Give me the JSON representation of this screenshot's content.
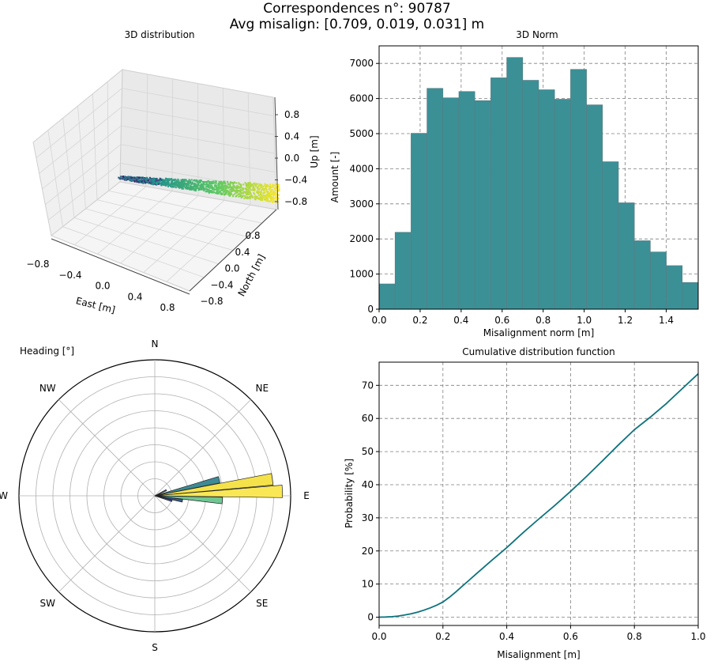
{
  "suptitle": {
    "line1": "Correspondences n°: 90787",
    "line2": "Avg misalign: [0.709, 0.019, 0.031] m"
  },
  "colors": {
    "hist": "#3b9096",
    "hist_edge": "#5a7a80",
    "cdf_line": "#0d737d",
    "grid": "#7f7f7f",
    "pane": "#f0f0f0"
  },
  "chart_data": [
    {
      "type": "scatter",
      "title": "3D distribution",
      "xlabel": "East [m]",
      "ylabel": "North [m]",
      "zlabel": "Up [m]",
      "x_ticks": [
        "−0.8",
        "−0.4",
        "0.0",
        "0.4",
        "0.8"
      ],
      "y_ticks": [
        "−0.8",
        "−0.4",
        "0.0",
        "0.4",
        "0.8"
      ],
      "z_ticks": [
        "0.8",
        "0.4",
        "0.0",
        "−0.4",
        "−0.8"
      ],
      "xlim": [
        -1.0,
        1.0
      ],
      "ylim": [
        -1.0,
        1.0
      ],
      "zlim": [
        -1.0,
        1.0
      ],
      "colormap": "viridis",
      "description_of_points": [
        {
          "east": -0.6,
          "north": 0.0,
          "up": -0.35
        },
        {
          "east": 0.0,
          "north": 0.0,
          "up": -0.45
        },
        {
          "east": 0.8,
          "north": 0.0,
          "up": -0.55
        }
      ]
    },
    {
      "type": "bar",
      "title": "3D Norm",
      "xlabel": "Misalignment norm [m]",
      "ylabel": "Amount [-]",
      "bin_start": 0.0,
      "bin_width": 0.0778,
      "values": [
        720,
        2190,
        5010,
        6290,
        6020,
        6200,
        5940,
        6590,
        7170,
        6520,
        6250,
        5980,
        6830,
        5820,
        4200,
        3030,
        1950,
        1630,
        1240,
        760
      ],
      "xlim": [
        0,
        1.556
      ],
      "ylim": [
        0,
        7500
      ],
      "x_ticks": [
        0.0,
        0.2,
        0.4,
        0.6,
        0.8,
        1.0,
        1.2,
        1.4
      ],
      "y_ticks": [
        0,
        1000,
        2000,
        3000,
        4000,
        5000,
        6000,
        7000
      ],
      "grid": true
    },
    {
      "type": "bar",
      "subtype": "polar",
      "title": "Heading [°]",
      "direction_labels": [
        "N",
        "NE",
        "E",
        "SE",
        "S",
        "SW",
        "W",
        "NW"
      ],
      "bars": [
        {
          "heading": 76,
          "length": 0.52,
          "color": "#3e8a96"
        },
        {
          "heading": 82,
          "length": 0.93,
          "color": "#f5e24a"
        },
        {
          "heading": 88,
          "length": 1.0,
          "color": "#fae755"
        },
        {
          "heading": 94,
          "length": 0.53,
          "color": "#70c793"
        },
        {
          "heading": 100,
          "length": 0.22,
          "color": "#3b5b8c"
        },
        {
          "heading": 106,
          "length": 0.14,
          "color": "#3c4c8a"
        },
        {
          "heading": 64,
          "length": 0.1,
          "color": "#3b5b8c"
        }
      ],
      "rings": 8
    },
    {
      "type": "line",
      "title": "Cumulative distribution function",
      "xlabel": "Misalignment [m]",
      "ylabel": "Probability [%]",
      "x": [
        0.0,
        0.02,
        0.04,
        0.06,
        0.08,
        0.1,
        0.12,
        0.14,
        0.16,
        0.18,
        0.2,
        0.22,
        0.24,
        0.26,
        0.28,
        0.3,
        0.35,
        0.4,
        0.45,
        0.5,
        0.55,
        0.6,
        0.65,
        0.7,
        0.75,
        0.8,
        0.85,
        0.9,
        0.95,
        1.0
      ],
      "y": [
        0.0,
        0.05,
        0.15,
        0.35,
        0.65,
        1.0,
        1.5,
        2.1,
        2.8,
        3.6,
        4.6,
        6.0,
        7.6,
        9.3,
        11.0,
        12.7,
        16.9,
        21.0,
        25.4,
        29.6,
        33.7,
        38.0,
        42.5,
        47.2,
        52.0,
        56.6,
        60.4,
        64.5,
        69.0,
        73.5
      ],
      "xlim": [
        0,
        1.0
      ],
      "ylim": [
        -2.5,
        77
      ],
      "x_ticks": [
        0.0,
        0.2,
        0.4,
        0.6,
        0.8,
        1.0
      ],
      "y_ticks": [
        0,
        10,
        20,
        30,
        40,
        50,
        60,
        70
      ],
      "grid": true
    }
  ]
}
